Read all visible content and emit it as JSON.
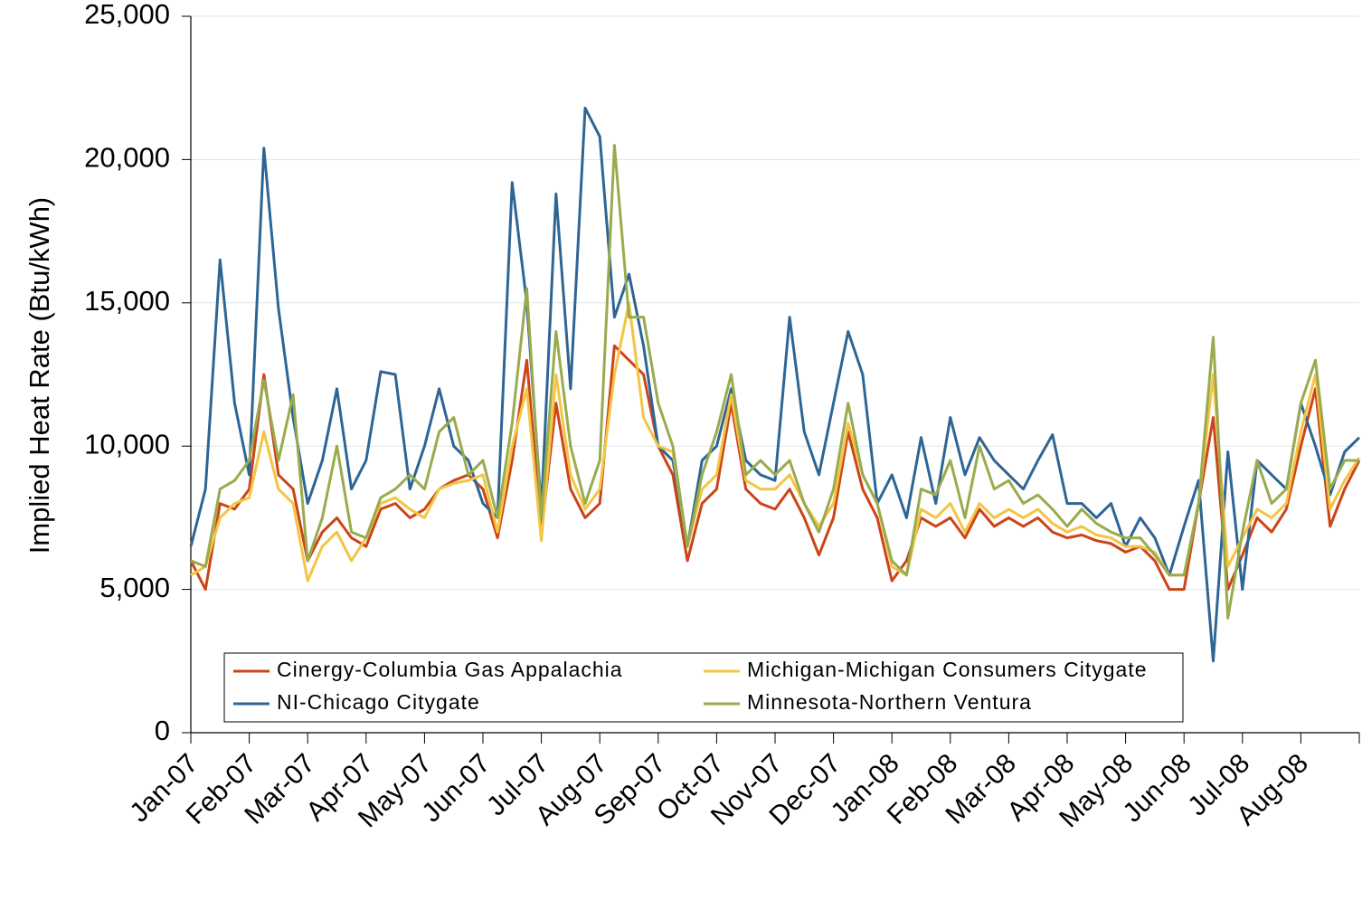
{
  "chart_data": {
    "type": "line",
    "y_label": "Implied Heat Rate (Btu/kWh)",
    "categories": [
      "Jan-07",
      null,
      null,
      null,
      "Feb-07",
      null,
      null,
      null,
      "Mar-07",
      null,
      null,
      null,
      "Apr-07",
      null,
      null,
      null,
      "May-07",
      null,
      null,
      null,
      "Jun-07",
      null,
      null,
      null,
      "Jul-07",
      null,
      null,
      null,
      "Aug-07",
      null,
      null,
      null,
      "Sep-07",
      null,
      null,
      null,
      "Oct-07",
      null,
      null,
      null,
      "Nov-07",
      null,
      null,
      null,
      "Dec-07",
      null,
      null,
      null,
      "Jan-08",
      null,
      null,
      null,
      "Feb-08",
      null,
      null,
      null,
      "Mar-08",
      null,
      null,
      null,
      "Apr-08",
      null,
      null,
      null,
      "May-08",
      null,
      null,
      null,
      "Jun-08",
      null,
      null,
      null,
      "Jul-08",
      null,
      null,
      null,
      "Aug-08",
      null,
      null,
      null,
      null
    ],
    "series": [
      {
        "name": "Cinergy-Columbia Gas Appalachia",
        "color": "#cc4418",
        "values": [
          6000,
          5000,
          8000,
          7800,
          8500,
          12500,
          9000,
          8500,
          6000,
          7000,
          7500,
          6800,
          6500,
          7800,
          8000,
          7500,
          7800,
          8500,
          8800,
          9000,
          8500,
          6800,
          9500,
          13000,
          7000,
          11500,
          8500,
          7500,
          8000,
          13500,
          13000,
          12500,
          10000,
          9000,
          6000,
          8000,
          8500,
          11500,
          8500,
          8000,
          7800,
          8500,
          7500,
          6200,
          7500,
          10500,
          8500,
          7500,
          5300,
          6000,
          7500,
          7200,
          7500,
          6800,
          7800,
          7200,
          7500,
          7200,
          7500,
          7000,
          6800,
          6900,
          6700,
          6600,
          6300,
          6500,
          6000,
          5000,
          5000,
          8000,
          11000,
          5000,
          6200,
          7500,
          7000,
          7800,
          10000,
          12000,
          7200,
          8500,
          9500
        ]
      },
      {
        "name": "NI-Chicago Citygate",
        "color": "#2d6595",
        "values": [
          6500,
          8500,
          16500,
          11500,
          9000,
          20400,
          14800,
          11000,
          8000,
          9500,
          12000,
          8500,
          9500,
          12600,
          12500,
          8500,
          10000,
          12000,
          10000,
          9500,
          8000,
          7500,
          19200,
          15000,
          7800,
          18800,
          12000,
          21800,
          20800,
          14500,
          16000,
          13500,
          10000,
          9500,
          6500,
          9500,
          10000,
          12000,
          9500,
          9000,
          8800,
          14500,
          10500,
          9000,
          11500,
          14000,
          12500,
          8000,
          9000,
          7500,
          10300,
          8000,
          11000,
          9000,
          10300,
          9500,
          9000,
          8500,
          9500,
          10400,
          8000,
          8000,
          7500,
          8000,
          6500,
          7500,
          6800,
          5500,
          7200,
          8800,
          2500,
          9800,
          5000,
          9500,
          9000,
          8500,
          11500,
          10000,
          8300,
          9800,
          10300
        ]
      },
      {
        "name": "Michigan-Michigan Consumers Citygate",
        "color": "#f4c443",
        "values": [
          5500,
          5800,
          7500,
          8000,
          8200,
          10500,
          8500,
          8000,
          5300,
          6500,
          7000,
          6000,
          6800,
          8000,
          8200,
          7800,
          7500,
          8500,
          8700,
          8800,
          9000,
          7000,
          10000,
          12000,
          6700,
          12500,
          9000,
          7800,
          8500,
          12500,
          15000,
          11000,
          10000,
          9800,
          6500,
          8500,
          9000,
          11800,
          8800,
          8500,
          8500,
          9000,
          8000,
          7200,
          8000,
          10800,
          9000,
          8000,
          5800,
          5500,
          7800,
          7500,
          8000,
          7000,
          8000,
          7500,
          7800,
          7500,
          7800,
          7300,
          7000,
          7200,
          6900,
          6800,
          6500,
          6500,
          6300,
          5500,
          5500,
          8000,
          12500,
          5800,
          6800,
          7800,
          7500,
          8000,
          10500,
          12500,
          7800,
          8800,
          9600
        ]
      },
      {
        "name": "Minnesota-Northern Ventura",
        "color": "#99ab4e",
        "values": [
          6000,
          5800,
          8500,
          8800,
          9500,
          12300,
          9500,
          11800,
          6000,
          7500,
          10000,
          7000,
          6800,
          8200,
          8500,
          9000,
          8500,
          10500,
          11000,
          9000,
          9500,
          7500,
          10800,
          15500,
          7500,
          14000,
          10000,
          8000,
          9500,
          20500,
          14500,
          14500,
          11500,
          10000,
          6500,
          9000,
          10500,
          12500,
          9000,
          9500,
          9000,
          9500,
          8000,
          7000,
          8500,
          11500,
          9000,
          8000,
          6000,
          5500,
          8500,
          8300,
          9500,
          7500,
          10000,
          8500,
          8800,
          8000,
          8300,
          7800,
          7200,
          7800,
          7300,
          7000,
          6800,
          6800,
          6200,
          5500,
          5500,
          8000,
          13800,
          4000,
          7000,
          9500,
          8000,
          8500,
          11500,
          13000,
          8500,
          9500,
          9500
        ]
      }
    ],
    "ylim": [
      0,
      25000
    ],
    "yticks": [
      0,
      {
        "value": 5000,
        "label": "5,000"
      },
      {
        "value": 10000,
        "label": "10,000"
      },
      {
        "value": 15000,
        "label": "15,000"
      },
      {
        "value": 20000,
        "label": "20,000"
      },
      {
        "value": 25000,
        "label": "25,000"
      }
    ],
    "grid": true
  }
}
